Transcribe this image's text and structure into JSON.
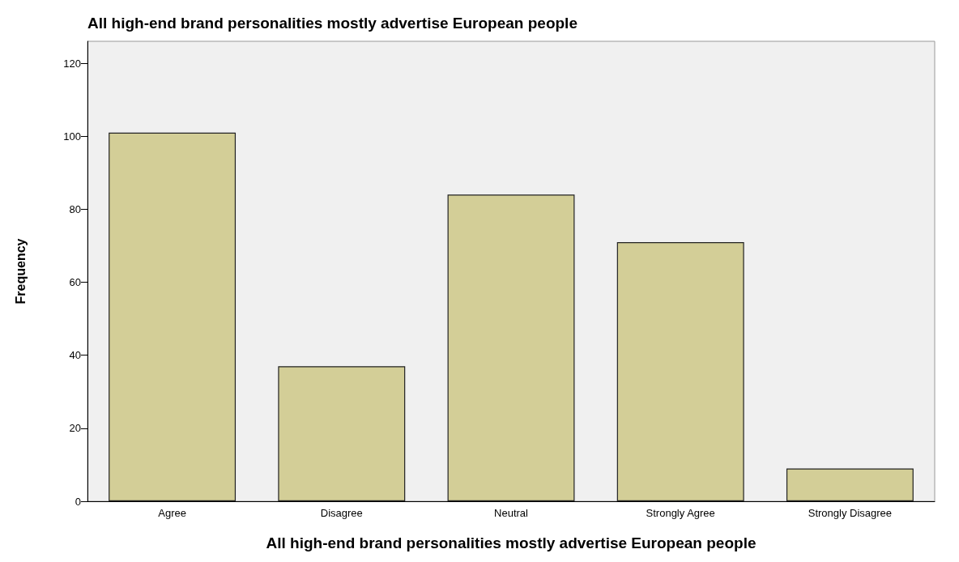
{
  "chart_data": {
    "type": "bar",
    "title": "All high-end brand personalities mostly advertise European people",
    "xlabel": "All high-end brand personalities mostly advertise European people",
    "ylabel": "Frequency",
    "categories": [
      "Agree",
      "Disagree",
      "Neutral",
      "Strongly Agree",
      "Strongly Disagree"
    ],
    "values": [
      101,
      37,
      84,
      71,
      9
    ],
    "color": "#d3ce97",
    "ylim": [
      0,
      126
    ],
    "yticks": [
      0,
      20,
      40,
      60,
      80,
      100,
      120
    ],
    "grid": false
  }
}
